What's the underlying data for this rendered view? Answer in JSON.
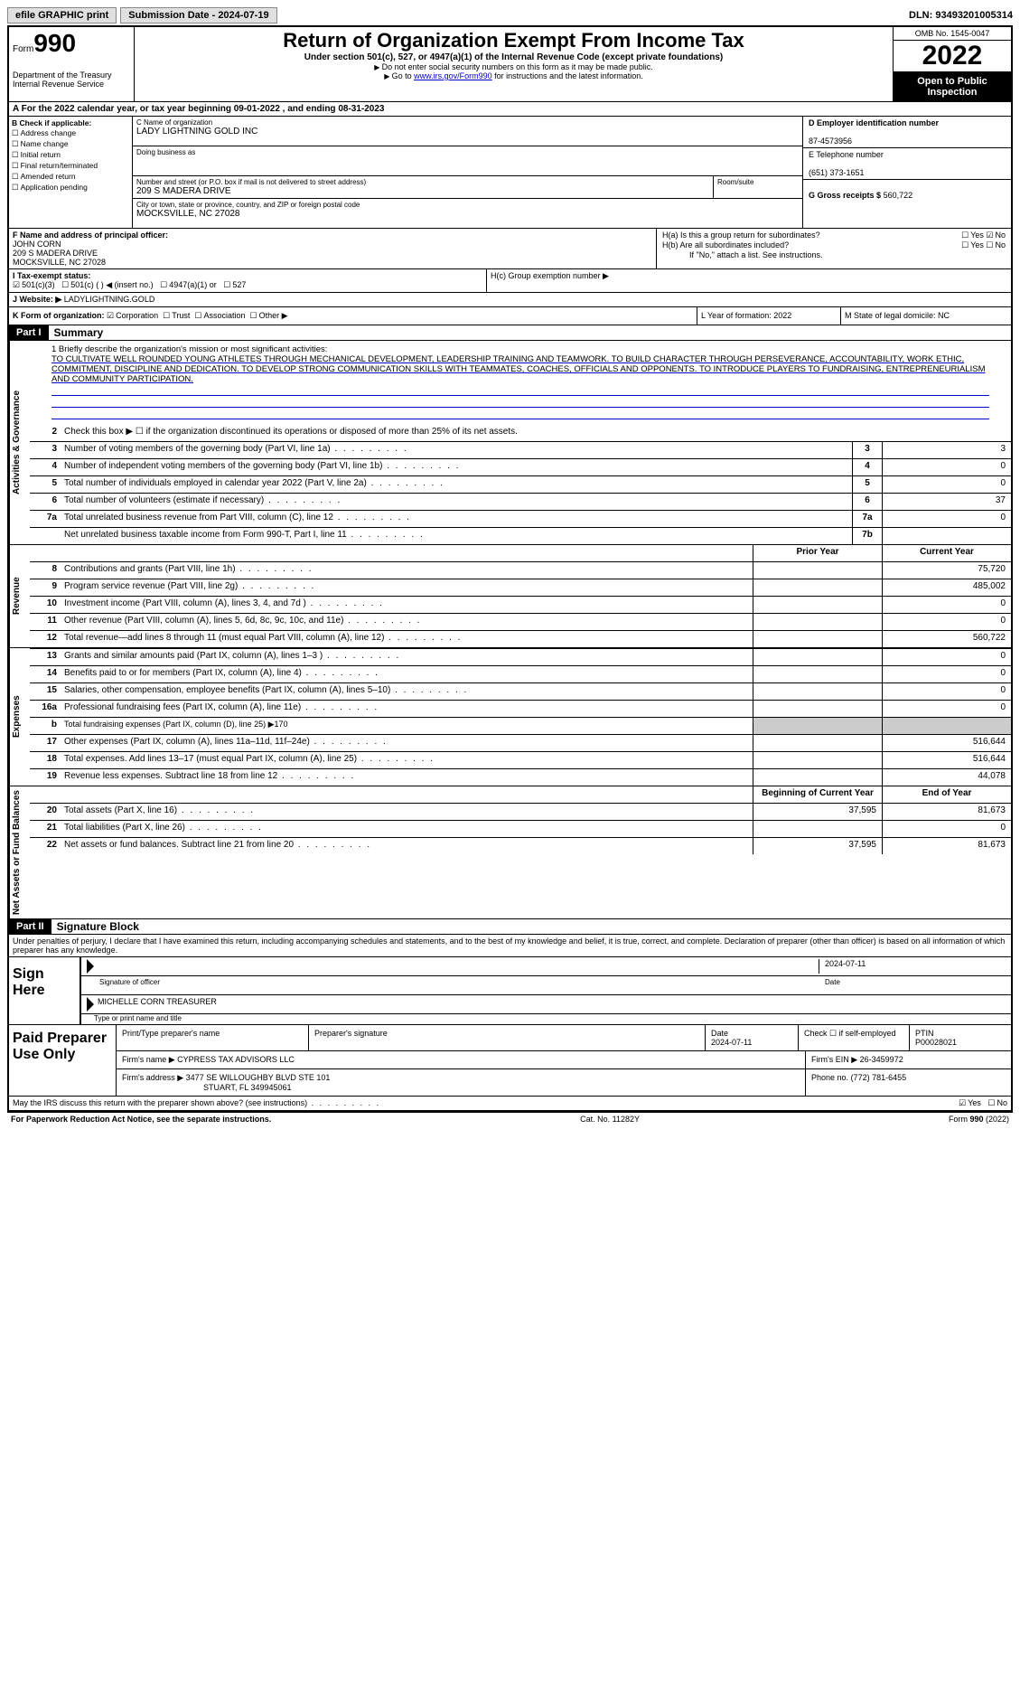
{
  "topbar": {
    "efile": "efile GRAPHIC print",
    "submission": "Submission Date - 2024-07-19",
    "dln": "DLN: 93493201005314"
  },
  "header": {
    "form_prefix": "Form",
    "form_number": "990",
    "dept": "Department of the Treasury",
    "irs": "Internal Revenue Service",
    "title": "Return of Organization Exempt From Income Tax",
    "subtitle": "Under section 501(c), 527, or 4947(a)(1) of the Internal Revenue Code (except private foundations)",
    "warn1": "Do not enter social security numbers on this form as it may be made public.",
    "warn2_pre": "Go to ",
    "warn2_link": "www.irs.gov/Form990",
    "warn2_post": " for instructions and the latest information.",
    "omb": "OMB No. 1545-0047",
    "year": "2022",
    "public": "Open to Public Inspection"
  },
  "rowA": "A For the 2022 calendar year, or tax year beginning 09-01-2022    , and ending 08-31-2023",
  "colB": {
    "title": "B Check if applicable:",
    "items": [
      "Address change",
      "Name change",
      "Initial return",
      "Final return/terminated",
      "Amended return",
      "Application pending"
    ]
  },
  "colC": {
    "name_lbl": "C Name of organization",
    "name": "LADY LIGHTNING GOLD INC",
    "dba_lbl": "Doing business as",
    "dba": "",
    "addr_lbl": "Number and street (or P.O. box if mail is not delivered to street address)",
    "room_lbl": "Room/suite",
    "addr": "209 S MADERA DRIVE",
    "city_lbl": "City or town, state or province, country, and ZIP or foreign postal code",
    "city": "MOCKSVILLE, NC  27028"
  },
  "colD": {
    "ein_lbl": "D Employer identification number",
    "ein": "87-4573956",
    "tel_lbl": "E Telephone number",
    "tel": "(651) 373-1651",
    "gross_lbl": "G Gross receipts $",
    "gross": "560,722"
  },
  "principal": {
    "lbl": "F  Name and address of principal officer:",
    "name": "JOHN CORN",
    "addr1": "209 S MADERA DRIVE",
    "addr2": "MOCKSVILLE, NC  27028",
    "ha": "H(a)  Is this a group return for subordinates?",
    "hb": "H(b)  Are all subordinates included?",
    "hb_note": "If \"No,\" attach a list. See instructions.",
    "hc": "H(c)  Group exemption number ▶",
    "yes": "Yes",
    "no": "No"
  },
  "rowI": {
    "lbl": "I   Tax-exempt status:",
    "o1": "501(c)(3)",
    "o2": "501(c) (  ) ◀ (insert no.)",
    "o3": "4947(a)(1) or",
    "o4": "527"
  },
  "rowJ": {
    "lbl": "J   Website: ▶",
    "val": "LADYLIGHTNING.GOLD"
  },
  "rowK": {
    "lbl": "K Form of organization:",
    "opts": [
      "Corporation",
      "Trust",
      "Association",
      "Other ▶"
    ],
    "l_lbl": "L Year of formation: 2022",
    "m_lbl": "M State of legal domicile: NC"
  },
  "part1": {
    "label": "Part I",
    "title": "Summary"
  },
  "mission": {
    "lbl": "1  Briefly describe the organization's mission or most significant activities:",
    "text": "TO CULTIVATE WELL ROUNDED YOUNG ATHLETES THROUGH MECHANICAL DEVELOPMENT, LEADERSHIP TRAINING AND TEAMWORK. TO BUILD CHARACTER THROUGH PERSEVERANCE, ACCOUNTABILITY, WORK ETHIC, COMMITMENT, DISCIPLINE AND DEDICATION. TO DEVELOP STRONG COMMUNICATION SKILLS WITH TEAMMATES, COACHES, OFFICIALS AND OPPONENTS. TO INTRODUCE PLAYERS TO FUNDRAISING, ENTREPRENEURIALISM AND COMMUNITY PARTICIPATION."
  },
  "gov_lines": [
    {
      "n": "2",
      "d": "Check this box ▶ ☐  if the organization discontinued its operations or disposed of more than 25% of its net assets."
    },
    {
      "n": "3",
      "d": "Number of voting members of the governing body (Part VI, line 1a)",
      "box": "3",
      "v": "3"
    },
    {
      "n": "4",
      "d": "Number of independent voting members of the governing body (Part VI, line 1b)",
      "box": "4",
      "v": "0"
    },
    {
      "n": "5",
      "d": "Total number of individuals employed in calendar year 2022 (Part V, line 2a)",
      "box": "5",
      "v": "0"
    },
    {
      "n": "6",
      "d": "Total number of volunteers (estimate if necessary)",
      "box": "6",
      "v": "37"
    },
    {
      "n": "7a",
      "d": "Total unrelated business revenue from Part VIII, column (C), line 12",
      "box": "7a",
      "v": "0"
    },
    {
      "n": "",
      "d": "Net unrelated business taxable income from Form 990-T, Part I, line 11",
      "box": "7b",
      "v": ""
    }
  ],
  "rev_head": {
    "prior": "Prior Year",
    "curr": "Current Year"
  },
  "rev_lines": [
    {
      "n": "8",
      "d": "Contributions and grants (Part VIII, line 1h)",
      "p": "",
      "c": "75,720"
    },
    {
      "n": "9",
      "d": "Program service revenue (Part VIII, line 2g)",
      "p": "",
      "c": "485,002"
    },
    {
      "n": "10",
      "d": "Investment income (Part VIII, column (A), lines 3, 4, and 7d )",
      "p": "",
      "c": "0"
    },
    {
      "n": "11",
      "d": "Other revenue (Part VIII, column (A), lines 5, 6d, 8c, 9c, 10c, and 11e)",
      "p": "",
      "c": "0"
    },
    {
      "n": "12",
      "d": "Total revenue—add lines 8 through 11 (must equal Part VIII, column (A), line 12)",
      "p": "",
      "c": "560,722"
    }
  ],
  "exp_lines": [
    {
      "n": "13",
      "d": "Grants and similar amounts paid (Part IX, column (A), lines 1–3 )",
      "p": "",
      "c": "0"
    },
    {
      "n": "14",
      "d": "Benefits paid to or for members (Part IX, column (A), line 4)",
      "p": "",
      "c": "0"
    },
    {
      "n": "15",
      "d": "Salaries, other compensation, employee benefits (Part IX, column (A), lines 5–10)",
      "p": "",
      "c": "0"
    },
    {
      "n": "16a",
      "d": "Professional fundraising fees (Part IX, column (A), line 11e)",
      "p": "",
      "c": "0"
    },
    {
      "n": "b",
      "d": "Total fundraising expenses (Part IX, column (D), line 25) ▶170",
      "shade": true
    },
    {
      "n": "17",
      "d": "Other expenses (Part IX, column (A), lines 11a–11d, 11f–24e)",
      "p": "",
      "c": "516,644"
    },
    {
      "n": "18",
      "d": "Total expenses. Add lines 13–17 (must equal Part IX, column (A), line 25)",
      "p": "",
      "c": "516,644"
    },
    {
      "n": "19",
      "d": "Revenue less expenses. Subtract line 18 from line 12",
      "p": "",
      "c": "44,078"
    }
  ],
  "na_head": {
    "prior": "Beginning of Current Year",
    "curr": "End of Year"
  },
  "na_lines": [
    {
      "n": "20",
      "d": "Total assets (Part X, line 16)",
      "p": "37,595",
      "c": "81,673"
    },
    {
      "n": "21",
      "d": "Total liabilities (Part X, line 26)",
      "p": "",
      "c": "0"
    },
    {
      "n": "22",
      "d": "Net assets or fund balances. Subtract line 21 from line 20",
      "p": "37,595",
      "c": "81,673"
    }
  ],
  "vtabs": {
    "gov": "Activities & Governance",
    "rev": "Revenue",
    "exp": "Expenses",
    "na": "Net Assets or Fund Balances"
  },
  "part2": {
    "label": "Part II",
    "title": "Signature Block"
  },
  "penalty": "Under penalties of perjury, I declare that I have examined this return, including accompanying schedules and statements, and to the best of my knowledge and belief, it is true, correct, and complete. Declaration of preparer (other than officer) is based on all information of which preparer has any knowledge.",
  "sign": {
    "here": "Sign Here",
    "sig_lbl": "Signature of officer",
    "date": "2024-07-11",
    "date_lbl": "Date",
    "name": "MICHELLE CORN  TREASURER",
    "name_lbl": "Type or print name and title"
  },
  "paid": {
    "label": "Paid Preparer Use Only",
    "h1": "Print/Type preparer's name",
    "h2": "Preparer's signature",
    "h3": "Date",
    "h4": "Check ☐ if self-employed",
    "h5": "PTIN",
    "date": "2024-07-11",
    "ptin": "P00028021",
    "firm_lbl": "Firm's name    ▶",
    "firm": "CYPRESS TAX ADVISORS LLC",
    "ein_lbl": "Firm's EIN ▶",
    "ein": "26-3459972",
    "addr_lbl": "Firm's address ▶",
    "addr1": "3477 SE WILLOUGHBY BLVD STE 101",
    "addr2": "STUART, FL  349945061",
    "phone_lbl": "Phone no.",
    "phone": "(772) 781-6455"
  },
  "discuss": {
    "q": "May the IRS discuss this return with the preparer shown above? (see instructions)",
    "yes": "Yes",
    "no": "No"
  },
  "footer": {
    "left": "For Paperwork Reduction Act Notice, see the separate instructions.",
    "mid": "Cat. No. 11282Y",
    "right": "Form 990 (2022)"
  }
}
